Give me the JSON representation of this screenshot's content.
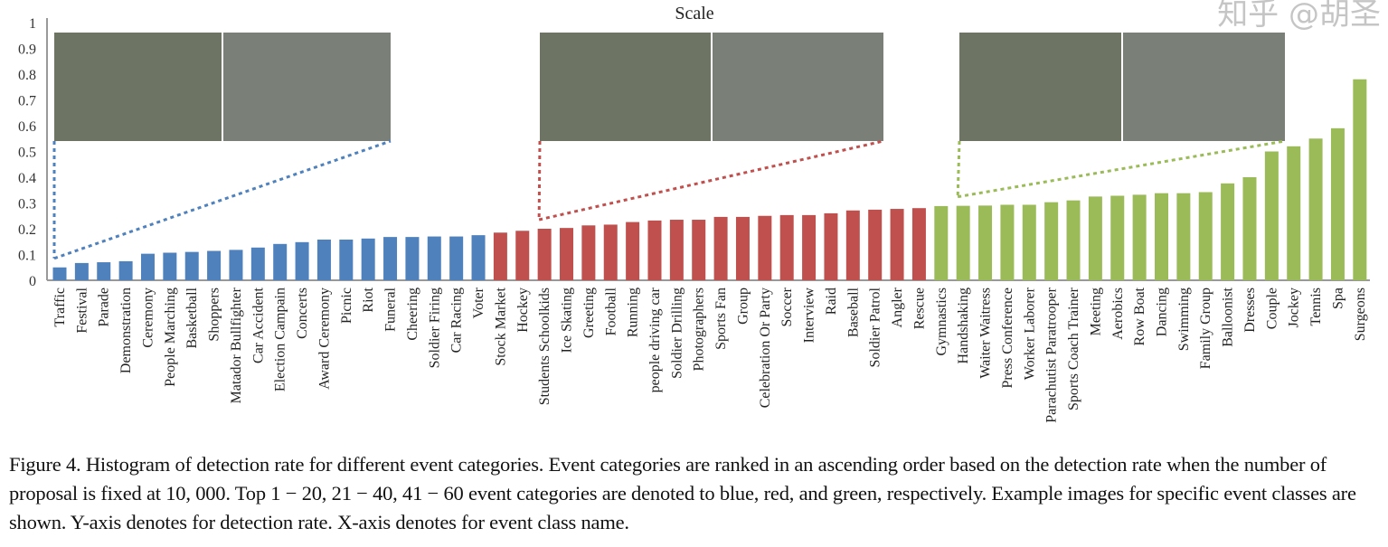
{
  "chart_data": {
    "type": "bar",
    "title": "Scale",
    "xlabel": "",
    "ylabel": "",
    "ylim": [
      0,
      1
    ],
    "yticks": [
      "0",
      "0.1",
      "0.2",
      "0.3",
      "0.4",
      "0.5",
      "0.6",
      "0.7",
      "0.8",
      "0.9",
      "1"
    ],
    "grid": false,
    "categories": [
      "Traffic",
      "Festival",
      "Parade",
      "Demonstration",
      "Ceremony",
      "People Marching",
      "Basketball",
      "Shoppers",
      "Matador Bullfighter",
      "Car Accident",
      "Election Campain",
      "Concerts",
      "Award Ceremony",
      "Picnic",
      "Riot",
      "Funeral",
      "Cheering",
      "Soldier Firing",
      "Car Racing",
      "Voter",
      "Stock Market",
      "Hockey",
      "Students Schoolkids",
      "Ice Skating",
      "Greeting",
      "Football",
      "Running",
      "people driving car",
      "Soldier Drilling",
      "Photographers",
      "Sports Fan",
      "Group",
      "Celebration Or Party",
      "Soccer",
      "Interview",
      "Raid",
      "Baseball",
      "Soldier Patrol",
      "Angler",
      "Rescue",
      "Gymnastics",
      "Handshaking",
      "Waiter Waitress",
      "Press Conference",
      "Worker Laborer",
      "Parachutist Paratrooper",
      "Sports Coach Trainer",
      "Meeting",
      "Aerobics",
      "Row Boat",
      "Dancing",
      "Swimming",
      "Family Group",
      "Balloonist",
      "Dresses",
      "Couple",
      "Jockey",
      "Tennis",
      "Spa",
      "Surgeons"
    ],
    "values": [
      0.05,
      0.067,
      0.07,
      0.074,
      0.103,
      0.107,
      0.11,
      0.114,
      0.118,
      0.127,
      0.141,
      0.148,
      0.158,
      0.158,
      0.162,
      0.168,
      0.168,
      0.17,
      0.17,
      0.175,
      0.185,
      0.192,
      0.2,
      0.203,
      0.213,
      0.216,
      0.226,
      0.232,
      0.235,
      0.235,
      0.246,
      0.246,
      0.25,
      0.253,
      0.253,
      0.26,
      0.271,
      0.274,
      0.277,
      0.28,
      0.288,
      0.289,
      0.29,
      0.293,
      0.293,
      0.303,
      0.31,
      0.325,
      0.328,
      0.332,
      0.338,
      0.338,
      0.342,
      0.376,
      0.4,
      0.5,
      0.52,
      0.55,
      0.59,
      0.78
    ],
    "groups": [
      {
        "range": "1-20",
        "color": "#4f81bd"
      },
      {
        "range": "21-40",
        "color": "#c0504d"
      },
      {
        "range": "41-60",
        "color": "#9bbb59"
      }
    ],
    "example_images": [
      {
        "class": "Traffic",
        "group": 0
      },
      {
        "class": "Students Schoolkids",
        "group": 1
      },
      {
        "class": "Handshaking",
        "group": 2
      }
    ]
  },
  "caption": "Figure 4. Histogram of detection rate for different event categories. Event categories are ranked in an ascending order based on the detection rate when the number of proposal is fixed at 10, 000. Top 1 − 20, 21 − 40, 41 − 60 event categories are denoted to blue, red, and green, respectively. Example images for specific event classes are shown. Y-axis denotes for detection rate. X-axis denotes for event class name.",
  "watermark": "知乎 @胡圣"
}
